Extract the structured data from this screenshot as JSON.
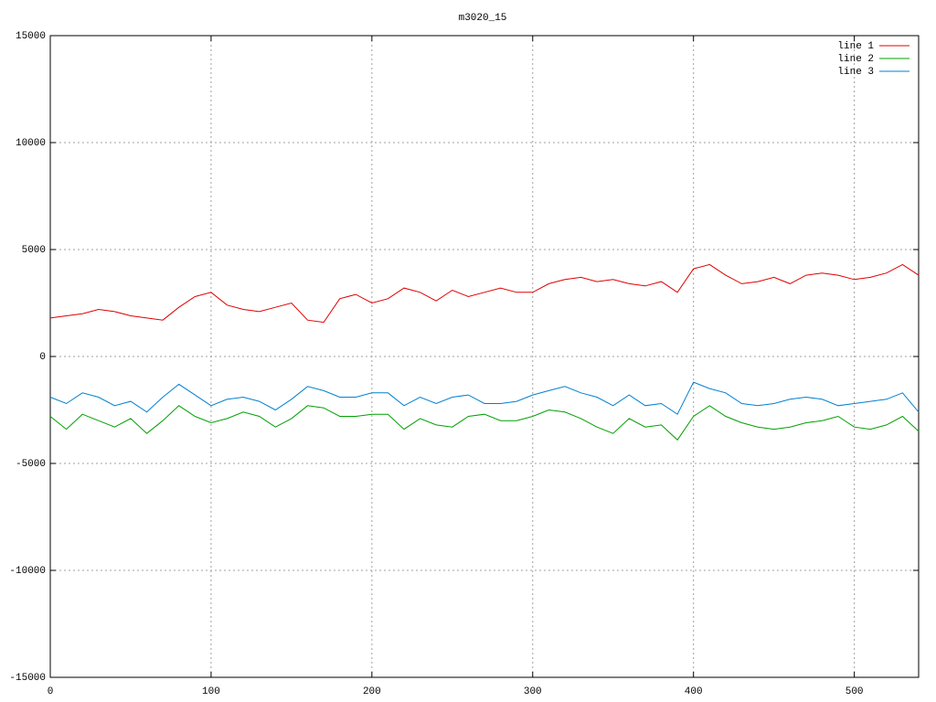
{
  "chart_data": {
    "type": "line",
    "title": "m3020_15",
    "x": [
      0,
      10,
      20,
      30,
      40,
      50,
      60,
      70,
      80,
      90,
      100,
      110,
      120,
      130,
      140,
      150,
      160,
      170,
      180,
      190,
      200,
      210,
      220,
      230,
      240,
      250,
      260,
      270,
      280,
      290,
      300,
      310,
      320,
      330,
      340,
      350,
      360,
      370,
      380,
      390,
      400,
      410,
      420,
      430,
      440,
      450,
      460,
      470,
      480,
      490,
      500,
      510,
      520,
      530,
      540
    ],
    "series": [
      {
        "name": "line 1",
        "color": "#e00000",
        "values": [
          1800,
          1900,
          2000,
          2200,
          2100,
          1900,
          1800,
          1700,
          2300,
          2800,
          3000,
          2400,
          2200,
          2100,
          2300,
          2500,
          1700,
          1600,
          2700,
          2900,
          2500,
          2700,
          3200,
          3000,
          2600,
          3100,
          2800,
          3000,
          3200,
          3000,
          3000,
          3400,
          3600,
          3700,
          3500,
          3600,
          3400,
          3300,
          3500,
          3000,
          4100,
          4300,
          3800,
          3400,
          3500,
          3700,
          3400,
          3800,
          3900,
          3800,
          3600,
          3700,
          3900,
          4300,
          3800
        ]
      },
      {
        "name": "line 2",
        "color": "#00a000",
        "values": [
          -2800,
          -3400,
          -2700,
          -3000,
          -3300,
          -2900,
          -3600,
          -3000,
          -2300,
          -2800,
          -3100,
          -2900,
          -2600,
          -2800,
          -3300,
          -2900,
          -2300,
          -2400,
          -2800,
          -2800,
          -2700,
          -2700,
          -3400,
          -2900,
          -3200,
          -3300,
          -2800,
          -2700,
          -3000,
          -3000,
          -2800,
          -2500,
          -2600,
          -2900,
          -3300,
          -3600,
          -2900,
          -3300,
          -3200,
          -3900,
          -2800,
          -2300,
          -2800,
          -3100,
          -3300,
          -3400,
          -3300,
          -3100,
          -3000,
          -2800,
          -3300,
          -3400,
          -3200,
          -2800,
          -3500
        ]
      },
      {
        "name": "line 3",
        "color": "#0080d0",
        "values": [
          -1900,
          -2200,
          -1700,
          -1900,
          -2300,
          -2100,
          -2600,
          -1900,
          -1300,
          -1800,
          -2300,
          -2000,
          -1900,
          -2100,
          -2500,
          -2000,
          -1400,
          -1600,
          -1900,
          -1900,
          -1700,
          -1700,
          -2300,
          -1900,
          -2200,
          -1900,
          -1800,
          -2200,
          -2200,
          -2100,
          -1800,
          -1600,
          -1400,
          -1700,
          -1900,
          -2300,
          -1800,
          -2300,
          -2200,
          -2700,
          -1200,
          -1500,
          -1700,
          -2200,
          -2300,
          -2200,
          -2000,
          -1900,
          -2000,
          -2300,
          -2200,
          -2100,
          -2000,
          -1700,
          -2600
        ]
      }
    ],
    "xlim": [
      0,
      540
    ],
    "xticks": [
      0,
      100,
      200,
      300,
      400,
      500
    ],
    "ylim": [
      -15000,
      15000
    ],
    "yticks": [
      -15000,
      -10000,
      -5000,
      0,
      5000,
      10000,
      15000
    ],
    "grid": true,
    "legend": "top-right"
  }
}
